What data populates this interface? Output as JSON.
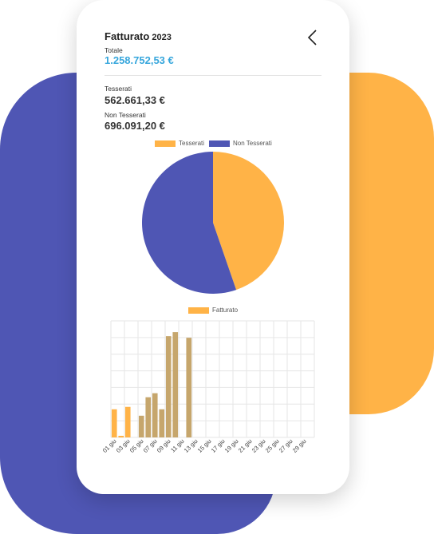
{
  "header": {
    "title": "Fatturato",
    "year": "2023"
  },
  "totale": {
    "label": "Totale",
    "value": "1.258.752,53 €"
  },
  "tesserati": {
    "label": "Tesserati",
    "value": "562.661,33 €"
  },
  "non_tesserati": {
    "label": "Non Tesserati",
    "value": "696.091,20 €"
  },
  "colors": {
    "accent": "#36a6dc",
    "orange": "#ffb347",
    "blue": "#4f56b4",
    "bar": "#c6a66c"
  },
  "icons": {
    "back": "chevron-left-icon"
  },
  "chart_data": [
    {
      "type": "pie",
      "labels": [
        "Tesserati",
        "Non Tesserati"
      ],
      "values": [
        562661.33,
        696091.2
      ],
      "colors": [
        "#ffb347",
        "#4f56b4"
      ],
      "legend": "top"
    },
    {
      "type": "bar",
      "series": [
        {
          "name": "Fatturato",
          "values": [
            35,
            2,
            38,
            0,
            27,
            50,
            55,
            35,
            126,
            131,
            0,
            124,
            0,
            0,
            0,
            0,
            0,
            0,
            0,
            0,
            0,
            0,
            0,
            0,
            0,
            0,
            0,
            0,
            0,
            0
          ]
        }
      ],
      "categories": [
        "01 giu",
        "02 giu",
        "03 giu",
        "04 giu",
        "05 giu",
        "06 giu",
        "07 giu",
        "08 giu",
        "09 giu",
        "10 giu",
        "11 giu",
        "12 giu",
        "13 giu",
        "14 giu",
        "15 giu",
        "16 giu",
        "17 giu",
        "18 giu",
        "19 giu",
        "20 giu",
        "21 giu",
        "22 giu",
        "23 giu",
        "24 giu",
        "25 giu",
        "26 giu",
        "27 giu",
        "28 giu",
        "29 giu",
        "30 giu"
      ],
      "tick_labels": [
        "01 giu",
        "03 giu",
        "05 giu",
        "07 giu",
        "09 giu",
        "11 giu",
        "13 giu",
        "15 giu",
        "17 giu",
        "19 giu",
        "21 giu",
        "23 giu",
        "25 giu",
        "27 giu",
        "29 giu"
      ],
      "bar_colors": [
        "#ffb347",
        "#ffb347",
        "#ffb347",
        "#ffb347",
        "#c6a66c",
        "#c6a66c",
        "#c6a66c",
        "#c6a66c",
        "#c6a66c",
        "#c6a66c",
        "#c6a66c",
        "#c6a66c"
      ],
      "grid": true,
      "legend": "top"
    }
  ]
}
